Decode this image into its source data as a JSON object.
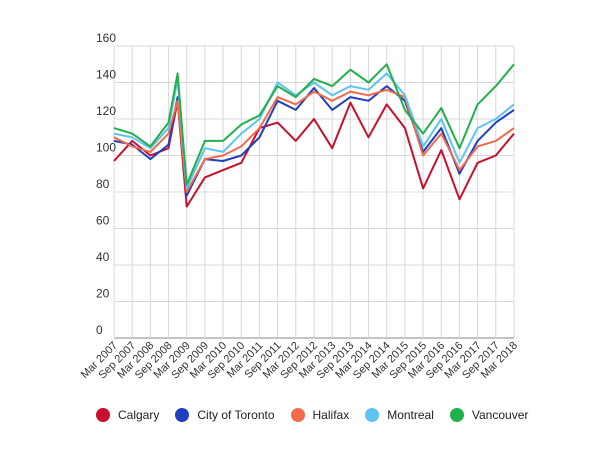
{
  "chart_data": {
    "type": "line",
    "title": "",
    "xlabel": "",
    "ylabel": "",
    "ylim": [
      0,
      160
    ],
    "yticks": [
      0,
      20,
      40,
      60,
      80,
      100,
      120,
      140,
      160
    ],
    "grid": true,
    "legend_position": "bottom",
    "x_tick_labels": [
      "Mar 2007",
      "Sep 2007",
      "Mar 2008",
      "Sep 2008",
      "Mar 2009",
      "Sep 2009",
      "Mar 2010",
      "Sep 2010",
      "Mar 2011",
      "Sep 2011",
      "Mar 2012",
      "Sep 2012",
      "Mar 2013",
      "Sep 2013",
      "Mar 2014",
      "Sep 2014",
      "Mar 2015",
      "Sep 2015",
      "Mar 2016",
      "Sep 2016",
      "Mar 2017",
      "Sep 2017",
      "Mar 2018"
    ],
    "x": [
      "Mar 2007",
      "Sep 2007",
      "Mar 2008",
      "Sep 2008",
      "Dec 2008",
      "Mar 2009",
      "Sep 2009",
      "Mar 2010",
      "Sep 2010",
      "Mar 2011",
      "Sep 2011",
      "Mar 2012",
      "Sep 2012",
      "Mar 2013",
      "Sep 2013",
      "Mar 2014",
      "Sep 2014",
      "Mar 2015",
      "Sep 2015",
      "Mar 2016",
      "Sep 2016",
      "Mar 2017",
      "Sep 2017",
      "Mar 2018"
    ],
    "series": [
      {
        "name": "Calgary",
        "color": "#c8102e",
        "values": [
          97,
          108,
          100,
          104,
          130,
          72,
          88,
          92,
          96,
          115,
          118,
          108,
          120,
          104,
          129,
          110,
          128,
          115,
          82,
          103,
          76,
          96,
          100,
          112
        ]
      },
      {
        "name": "City of Toronto",
        "color": "#1f3fbf",
        "values": [
          108,
          106,
          98,
          106,
          132,
          78,
          98,
          97,
          100,
          110,
          130,
          125,
          137,
          125,
          132,
          130,
          138,
          130,
          102,
          115,
          90,
          108,
          118,
          125
        ]
      },
      {
        "name": "Halifax",
        "color": "#f26a4b",
        "values": [
          110,
          105,
          102,
          112,
          130,
          80,
          98,
          100,
          105,
          115,
          132,
          128,
          135,
          130,
          135,
          133,
          136,
          132,
          100,
          112,
          92,
          105,
          108,
          115
        ]
      },
      {
        "name": "Montreal",
        "color": "#5ec3f0",
        "values": [
          112,
          110,
          104,
          115,
          142,
          82,
          104,
          102,
          112,
          120,
          140,
          133,
          140,
          133,
          138,
          136,
          145,
          133,
          105,
          120,
          96,
          115,
          120,
          128
        ]
      },
      {
        "name": "Vancouver",
        "color": "#22b04b",
        "values": [
          115,
          112,
          105,
          118,
          145,
          84,
          108,
          108,
          117,
          122,
          138,
          132,
          142,
          138,
          147,
          140,
          150,
          125,
          112,
          126,
          104,
          128,
          138,
          150
        ]
      }
    ]
  }
}
